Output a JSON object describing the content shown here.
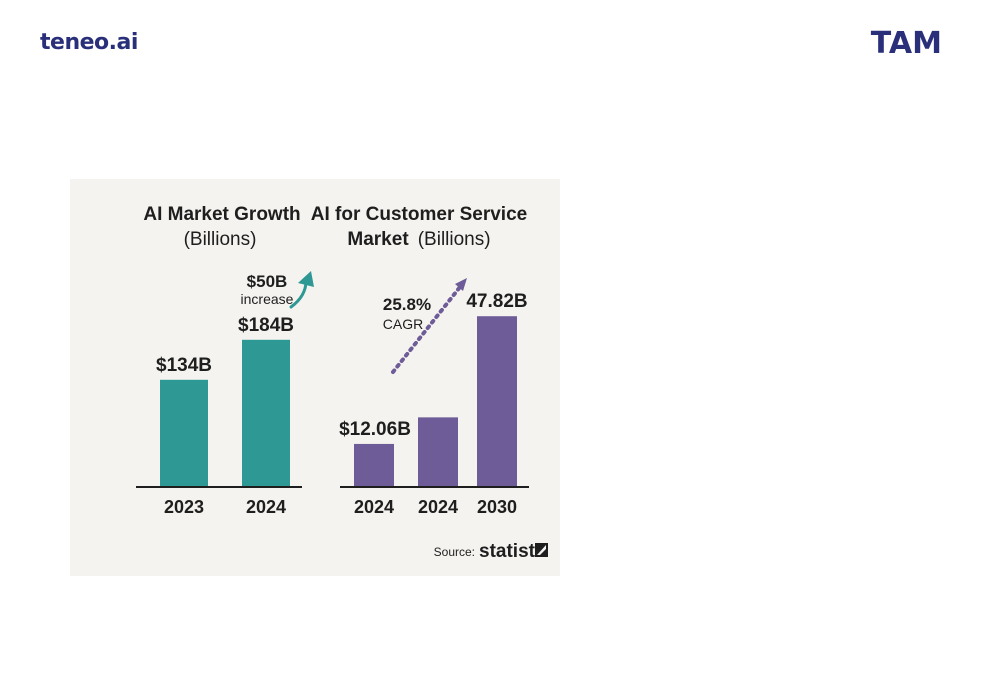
{
  "header": {
    "logo": "teneo.ai",
    "title": "TAM"
  },
  "colors": {
    "brand": "#2a2f7a",
    "chart1_bar": "#2e9894",
    "chart2_bar": "#6d5c98",
    "card_bg": "#f5f3ef"
  },
  "chart_data": [
    {
      "type": "bar",
      "title": "AI Market Growth",
      "subtitle": "(Billions)",
      "categories": [
        "2023",
        "2024"
      ],
      "values": [
        134,
        184
      ],
      "value_labels": [
        "$134B",
        "$184B"
      ],
      "annotation": {
        "value": "$50B",
        "text": "increase",
        "icon": "curved-up-arrow-icon"
      },
      "ylim": [
        0,
        250
      ],
      "grid": false
    },
    {
      "type": "bar",
      "title": "AI for Customer Service",
      "title_line2": "Market",
      "subtitle": "(Billions)",
      "categories": [
        "2024",
        "2024",
        "2030"
      ],
      "values": [
        12.06,
        19.5,
        47.82
      ],
      "value_labels": [
        "$12.06B",
        "",
        "47.82B"
      ],
      "annotation": {
        "value": "25.8%",
        "text": "CAGR",
        "icon": "dotted-trend-arrow-icon"
      },
      "ylim": [
        0,
        56
      ],
      "grid": false
    }
  ],
  "source": {
    "label": "Source:",
    "brand": "statista",
    "icon": "statista-logo-icon"
  }
}
